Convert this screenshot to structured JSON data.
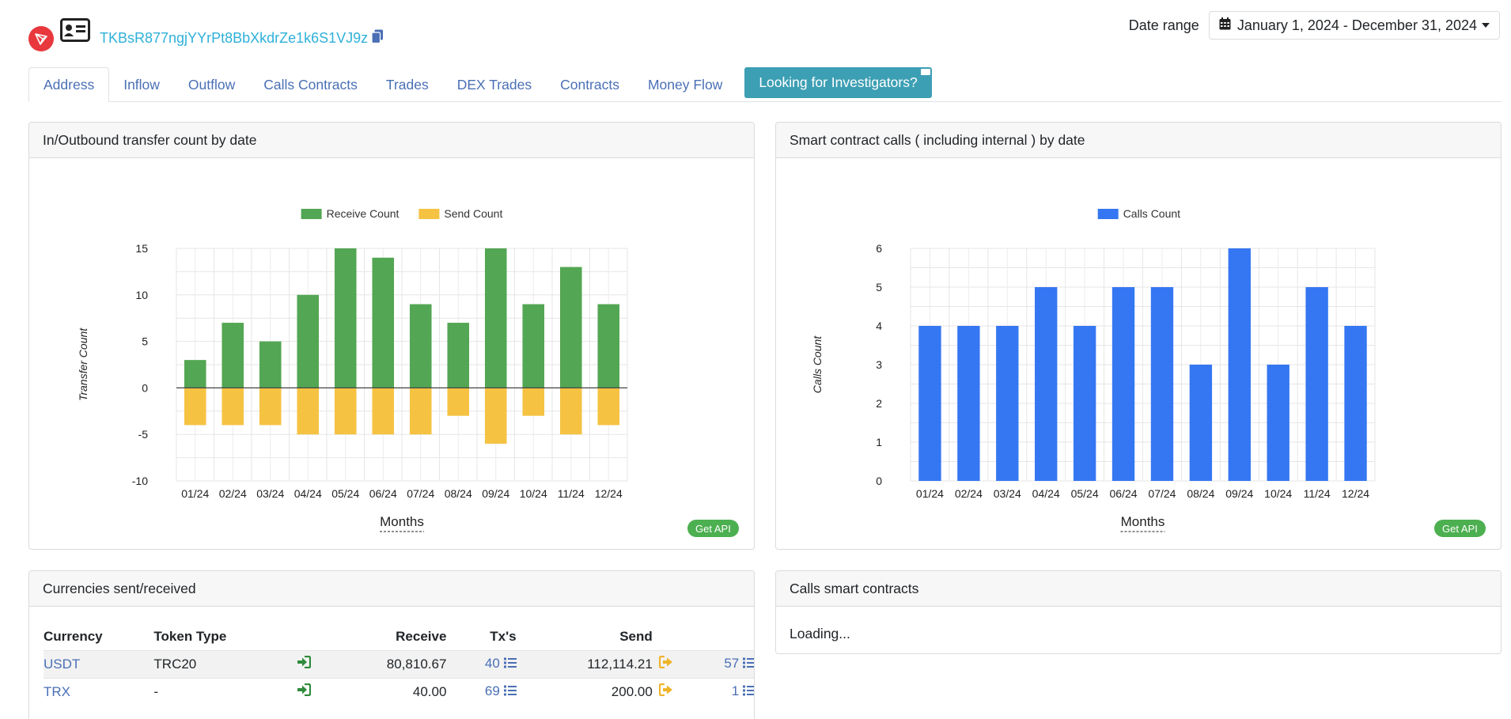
{
  "header": {
    "address": "TKBsR877ngjYYrPt8BbXkdrZe1k6S1VJ9z",
    "date_range_label": "Date range",
    "date_range_value": "January 1, 2024 - December 31, 2024"
  },
  "tabs": [
    {
      "label": "Address",
      "active": true
    },
    {
      "label": "Inflow"
    },
    {
      "label": "Outflow"
    },
    {
      "label": "Calls Contracts"
    },
    {
      "label": "Trades"
    },
    {
      "label": "DEX Trades"
    },
    {
      "label": "Contracts"
    },
    {
      "label": "Money Flow"
    }
  ],
  "cta_label": "Looking for Investigators?",
  "transfer_card": {
    "title": "In/Outbound transfer count by date",
    "get_api": "Get API"
  },
  "calls_card": {
    "title": "Smart contract calls ( including internal ) by date",
    "get_api": "Get API"
  },
  "currencies_card": {
    "title": "Currencies sent/received",
    "columns": [
      "Currency",
      "Token Type",
      "Receive",
      "Tx's",
      "Send"
    ],
    "rows": [
      {
        "currency": "USDT",
        "token_type": "TRC20",
        "receive": "80,810.67",
        "rx_tx": "40",
        "send": "112,114.21",
        "tx_tx": "57"
      },
      {
        "currency": "TRX",
        "token_type": "-",
        "receive": "40.00",
        "rx_tx": "69",
        "send": "200.00",
        "tx_tx": "1"
      }
    ]
  },
  "calls_smart_card": {
    "title": "Calls smart contracts",
    "status": "Loading..."
  },
  "colors": {
    "receive": "#53a653",
    "send": "#f5c242",
    "calls": "#3577f2",
    "accent_link": "#4a6fb5",
    "cta": "#3d9fb4"
  },
  "chart_data": [
    {
      "type": "bar",
      "categories": [
        "01/24",
        "02/24",
        "03/24",
        "04/24",
        "05/24",
        "06/24",
        "07/24",
        "08/24",
        "09/24",
        "10/24",
        "11/24",
        "12/24"
      ],
      "series": [
        {
          "name": "Receive Count",
          "values": [
            3,
            7,
            5,
            10,
            15,
            14,
            9,
            7,
            15,
            9,
            13,
            9
          ]
        },
        {
          "name": "Send Count",
          "values": [
            -4,
            -4,
            -4,
            -5,
            -5,
            -5,
            -5,
            -3,
            -6,
            -3,
            -5,
            -4
          ]
        }
      ],
      "xlabel": "Months",
      "ylabel": "Transfer Count",
      "ylim": [
        -10,
        15
      ],
      "yticks": [
        -10,
        -5,
        0,
        5,
        10,
        15
      ],
      "legend": "top",
      "grid": true
    },
    {
      "type": "bar",
      "categories": [
        "01/24",
        "02/24",
        "03/24",
        "04/24",
        "05/24",
        "06/24",
        "07/24",
        "08/24",
        "09/24",
        "10/24",
        "11/24",
        "12/24"
      ],
      "series": [
        {
          "name": "Calls Count",
          "values": [
            4,
            4,
            4,
            5,
            4,
            5,
            5,
            3,
            6,
            3,
            5,
            4
          ]
        }
      ],
      "xlabel": "Months",
      "ylabel": "Calls Count",
      "ylim": [
        0,
        6
      ],
      "yticks": [
        0,
        1,
        2,
        3,
        4,
        5,
        6
      ],
      "legend": "top",
      "grid": true
    }
  ]
}
